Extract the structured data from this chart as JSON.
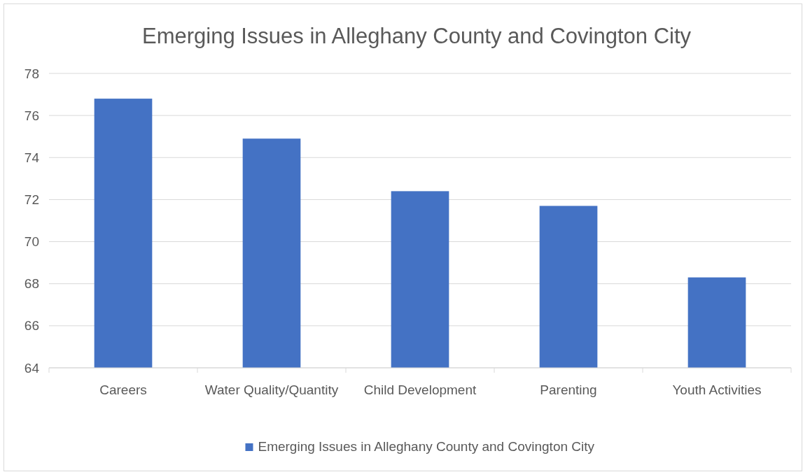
{
  "chart_data": {
    "type": "bar",
    "title": "Emerging Issues in Alleghany County and Covington City",
    "categories": [
      "Careers",
      "Water Quality/Quantity",
      "Child Development",
      "Parenting",
      "Youth Activities"
    ],
    "series": [
      {
        "name": "Emerging Issues in Alleghany County and Covington City",
        "color": "#4472c4",
        "values": [
          76.8,
          74.9,
          72.4,
          71.7,
          68.3
        ]
      }
    ],
    "ylim": [
      64,
      78
    ],
    "yticks": [
      64,
      66,
      68,
      70,
      72,
      74,
      76,
      78
    ],
    "grid": "y",
    "legend": "bottom"
  }
}
